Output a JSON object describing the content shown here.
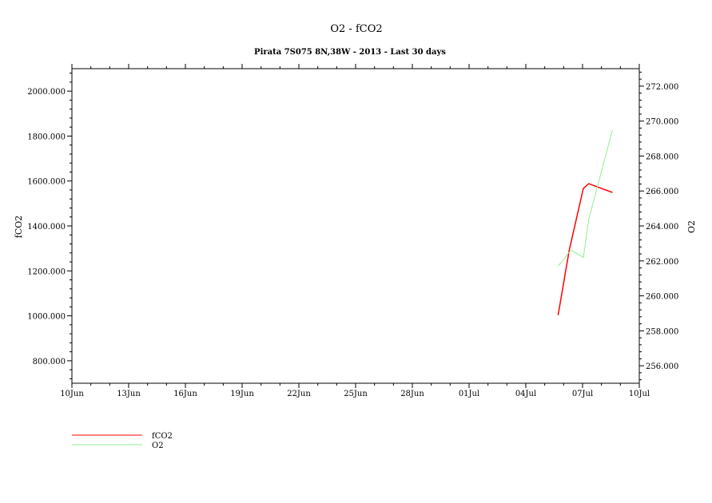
{
  "chart_data": {
    "type": "line",
    "title": "O2 - fCO2",
    "subtitle": "Pirata 7S075 8N,38W - 2013 - Last 30 days",
    "xlabel": "",
    "ylabel_left": "fCO2",
    "ylabel_right": "O2",
    "xlim": [
      "2013-06-10",
      "2013-07-10"
    ],
    "xticks": [
      "10Jun",
      "13Jun",
      "16Jun",
      "19Jun",
      "22Jun",
      "25Jun",
      "28Jun",
      "01Jul",
      "04Jul",
      "07Jul",
      "10Jul"
    ],
    "ylim_left": [
      700,
      2100
    ],
    "yticks_left": [
      "800.000",
      "1000.000",
      "1200.000",
      "1400.000",
      "1600.000",
      "1800.000",
      "2000.000"
    ],
    "ylim_right": [
      255,
      273
    ],
    "yticks_right": [
      "256.000",
      "258.000",
      "260.000",
      "262.000",
      "264.000",
      "266.000",
      "268.000",
      "270.000",
      "272.000"
    ],
    "grid": false,
    "legend_placement": "bottom-left",
    "series": [
      {
        "name": "fCO2",
        "axis": "left",
        "color": "#ff0000",
        "x": [
          "2013-07-05T17:00",
          "2013-07-06T07:00",
          "2013-07-07T01:00",
          "2013-07-07T08:00",
          "2013-07-08T14:00"
        ],
        "values": [
          1003,
          1290,
          1567,
          1588,
          1549
        ]
      },
      {
        "name": "O2",
        "axis": "right",
        "color": "#90ee90",
        "x": [
          "2013-07-05T17:00",
          "2013-07-06T07:00",
          "2013-07-06T10:00",
          "2013-07-07T01:00",
          "2013-07-07T08:00",
          "2013-07-08T14:00"
        ],
        "values": [
          261.7,
          262.5,
          262.6,
          262.2,
          264.4,
          269.5
        ]
      }
    ]
  }
}
